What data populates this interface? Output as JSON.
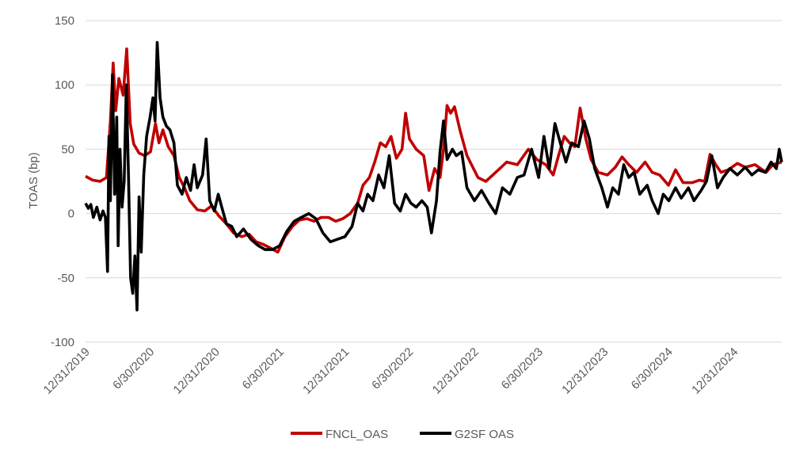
{
  "chart_data": {
    "type": "line",
    "ylabel": "TOAS (bp)",
    "ylim": [
      -100,
      150
    ],
    "yticks": [
      "150",
      "100",
      "50",
      "0",
      "-50",
      "-100"
    ],
    "xlim": [
      "2019-12-31",
      "2025-05-15"
    ],
    "xticks": [
      "12/31/2019",
      "6/30/2020",
      "12/31/2020",
      "6/30/2021",
      "12/31/2021",
      "6/30/2022",
      "12/31/2022",
      "6/30/2023",
      "12/31/2023",
      "6/30/2024",
      "12/31/2024"
    ],
    "grid": true,
    "legend_position": "bottom",
    "series": [
      {
        "name": "FNCL_OAS",
        "color": "#c00000",
        "points": [
          [
            "2019-12-31",
            29
          ],
          [
            "2020-01-20",
            26
          ],
          [
            "2020-02-10",
            25
          ],
          [
            "2020-02-28",
            28
          ],
          [
            "2020-03-10",
            72
          ],
          [
            "2020-03-18",
            117
          ],
          [
            "2020-03-25",
            80
          ],
          [
            "2020-04-03",
            105
          ],
          [
            "2020-04-15",
            92
          ],
          [
            "2020-04-25",
            128
          ],
          [
            "2020-05-05",
            70
          ],
          [
            "2020-05-15",
            54
          ],
          [
            "2020-05-30",
            47
          ],
          [
            "2020-06-15",
            45
          ],
          [
            "2020-07-01",
            48
          ],
          [
            "2020-07-15",
            70
          ],
          [
            "2020-07-25",
            55
          ],
          [
            "2020-08-05",
            65
          ],
          [
            "2020-08-20",
            52
          ],
          [
            "2020-09-05",
            45
          ],
          [
            "2020-09-20",
            28
          ],
          [
            "2020-10-05",
            20
          ],
          [
            "2020-10-20",
            10
          ],
          [
            "2020-11-10",
            3
          ],
          [
            "2020-12-01",
            2
          ],
          [
            "2020-12-20",
            6
          ],
          [
            "2021-01-10",
            -2
          ],
          [
            "2021-01-31",
            -8
          ],
          [
            "2021-02-20",
            -15
          ],
          [
            "2021-03-15",
            -18
          ],
          [
            "2021-04-05",
            -16
          ],
          [
            "2021-04-25",
            -22
          ],
          [
            "2021-05-15",
            -24
          ],
          [
            "2021-06-05",
            -27
          ],
          [
            "2021-06-25",
            -30
          ],
          [
            "2021-07-15",
            -18
          ],
          [
            "2021-08-05",
            -10
          ],
          [
            "2021-08-25",
            -5
          ],
          [
            "2021-09-15",
            -4
          ],
          [
            "2021-10-05",
            -6
          ],
          [
            "2021-10-25",
            -3
          ],
          [
            "2021-11-15",
            -3
          ],
          [
            "2021-12-05",
            -6
          ],
          [
            "2021-12-25",
            -4
          ],
          [
            "2022-01-15",
            0
          ],
          [
            "2022-02-05",
            8
          ],
          [
            "2022-02-20",
            22
          ],
          [
            "2022-03-10",
            28
          ],
          [
            "2022-03-25",
            40
          ],
          [
            "2022-04-10",
            55
          ],
          [
            "2022-04-25",
            52
          ],
          [
            "2022-05-10",
            60
          ],
          [
            "2022-05-25",
            43
          ],
          [
            "2022-06-10",
            50
          ],
          [
            "2022-06-20",
            78
          ],
          [
            "2022-07-01",
            58
          ],
          [
            "2022-07-20",
            50
          ],
          [
            "2022-08-10",
            45
          ],
          [
            "2022-08-25",
            18
          ],
          [
            "2022-09-10",
            35
          ],
          [
            "2022-09-25",
            28
          ],
          [
            "2022-10-05",
            50
          ],
          [
            "2022-10-15",
            84
          ],
          [
            "2022-10-25",
            78
          ],
          [
            "2022-11-05",
            83
          ],
          [
            "2022-11-20",
            65
          ],
          [
            "2022-12-10",
            45
          ],
          [
            "2023-01-10",
            28
          ],
          [
            "2023-02-01",
            25
          ],
          [
            "2023-03-01",
            32
          ],
          [
            "2023-04-01",
            40
          ],
          [
            "2023-05-01",
            38
          ],
          [
            "2023-06-01",
            50
          ],
          [
            "2023-06-25",
            42
          ],
          [
            "2023-07-20",
            38
          ],
          [
            "2023-08-10",
            30
          ],
          [
            "2023-08-25",
            45
          ],
          [
            "2023-09-10",
            60
          ],
          [
            "2023-09-25",
            55
          ],
          [
            "2023-10-10",
            52
          ],
          [
            "2023-10-25",
            82
          ],
          [
            "2023-11-10",
            58
          ],
          [
            "2023-11-25",
            42
          ],
          [
            "2023-12-15",
            32
          ],
          [
            "2024-01-10",
            30
          ],
          [
            "2024-02-01",
            36
          ],
          [
            "2024-02-20",
            44
          ],
          [
            "2024-03-10",
            38
          ],
          [
            "2024-04-01",
            32
          ],
          [
            "2024-04-25",
            40
          ],
          [
            "2024-05-15",
            32
          ],
          [
            "2024-06-05",
            30
          ],
          [
            "2024-06-30",
            22
          ],
          [
            "2024-07-20",
            34
          ],
          [
            "2024-08-10",
            24
          ],
          [
            "2024-09-05",
            24
          ],
          [
            "2024-09-25",
            26
          ],
          [
            "2024-10-10",
            25
          ],
          [
            "2024-10-25",
            46
          ],
          [
            "2024-11-10",
            38
          ],
          [
            "2024-11-25",
            32
          ],
          [
            "2024-12-15",
            34
          ],
          [
            "2025-01-10",
            39
          ],
          [
            "2025-02-01",
            36
          ],
          [
            "2025-03-01",
            38
          ],
          [
            "2025-04-01",
            32
          ],
          [
            "2025-04-20",
            38
          ],
          [
            "2025-05-15",
            40
          ]
        ]
      },
      {
        "name": "G2SF OAS",
        "color": "#000000",
        "points": [
          [
            "2019-12-31",
            8
          ],
          [
            "2020-01-08",
            4
          ],
          [
            "2020-01-15",
            7
          ],
          [
            "2020-01-22",
            -3
          ],
          [
            "2020-02-01",
            5
          ],
          [
            "2020-02-10",
            -5
          ],
          [
            "2020-02-18",
            2
          ],
          [
            "2020-02-25",
            -3
          ],
          [
            "2020-03-02",
            -45
          ],
          [
            "2020-03-06",
            60
          ],
          [
            "2020-03-10",
            10
          ],
          [
            "2020-03-16",
            108
          ],
          [
            "2020-03-22",
            15
          ],
          [
            "2020-03-28",
            75
          ],
          [
            "2020-04-01",
            -25
          ],
          [
            "2020-04-06",
            50
          ],
          [
            "2020-04-12",
            5
          ],
          [
            "2020-04-18",
            25
          ],
          [
            "2020-04-24",
            100
          ],
          [
            "2020-04-30",
            30
          ],
          [
            "2020-05-06",
            -50
          ],
          [
            "2020-05-12",
            -62
          ],
          [
            "2020-05-18",
            -33
          ],
          [
            "2020-05-24",
            -75
          ],
          [
            "2020-05-30",
            13
          ],
          [
            "2020-06-05",
            -30
          ],
          [
            "2020-06-12",
            30
          ],
          [
            "2020-06-20",
            60
          ],
          [
            "2020-06-30",
            75
          ],
          [
            "2020-07-08",
            90
          ],
          [
            "2020-07-14",
            72
          ],
          [
            "2020-07-20",
            133
          ],
          [
            "2020-07-28",
            90
          ],
          [
            "2020-08-05",
            75
          ],
          [
            "2020-08-15",
            68
          ],
          [
            "2020-08-25",
            65
          ],
          [
            "2020-09-05",
            55
          ],
          [
            "2020-09-15",
            22
          ],
          [
            "2020-09-28",
            15
          ],
          [
            "2020-10-10",
            28
          ],
          [
            "2020-10-22",
            18
          ],
          [
            "2020-11-01",
            38
          ],
          [
            "2020-11-10",
            20
          ],
          [
            "2020-11-25",
            30
          ],
          [
            "2020-12-05",
            58
          ],
          [
            "2020-12-15",
            10
          ],
          [
            "2020-12-28",
            2
          ],
          [
            "2021-01-08",
            15
          ],
          [
            "2021-01-18",
            5
          ],
          [
            "2021-01-31",
            -8
          ],
          [
            "2021-02-15",
            -10
          ],
          [
            "2021-03-01",
            -18
          ],
          [
            "2021-03-20",
            -12
          ],
          [
            "2021-04-10",
            -20
          ],
          [
            "2021-05-01",
            -25
          ],
          [
            "2021-05-20",
            -28
          ],
          [
            "2021-06-10",
            -28
          ],
          [
            "2021-06-30",
            -25
          ],
          [
            "2021-07-20",
            -14
          ],
          [
            "2021-08-10",
            -6
          ],
          [
            "2021-08-30",
            -3
          ],
          [
            "2021-09-20",
            0
          ],
          [
            "2021-10-10",
            -4
          ],
          [
            "2021-10-30",
            -15
          ],
          [
            "2021-11-20",
            -22
          ],
          [
            "2021-12-10",
            -20
          ],
          [
            "2021-12-31",
            -18
          ],
          [
            "2022-01-20",
            -10
          ],
          [
            "2022-02-05",
            8
          ],
          [
            "2022-02-20",
            2
          ],
          [
            "2022-03-05",
            15
          ],
          [
            "2022-03-20",
            10
          ],
          [
            "2022-04-05",
            30
          ],
          [
            "2022-04-20",
            20
          ],
          [
            "2022-05-05",
            45
          ],
          [
            "2022-05-20",
            8
          ],
          [
            "2022-06-05",
            2
          ],
          [
            "2022-06-20",
            15
          ],
          [
            "2022-07-05",
            8
          ],
          [
            "2022-07-20",
            5
          ],
          [
            "2022-08-05",
            10
          ],
          [
            "2022-08-20",
            5
          ],
          [
            "2022-09-01",
            -15
          ],
          [
            "2022-09-15",
            10
          ],
          [
            "2022-09-25",
            48
          ],
          [
            "2022-10-05",
            72
          ],
          [
            "2022-10-15",
            42
          ],
          [
            "2022-10-30",
            50
          ],
          [
            "2022-11-10",
            45
          ],
          [
            "2022-11-25",
            48
          ],
          [
            "2022-12-10",
            20
          ],
          [
            "2022-12-31",
            10
          ],
          [
            "2023-01-20",
            18
          ],
          [
            "2023-02-10",
            8
          ],
          [
            "2023-03-01",
            0
          ],
          [
            "2023-03-20",
            20
          ],
          [
            "2023-04-10",
            15
          ],
          [
            "2023-05-01",
            28
          ],
          [
            "2023-05-20",
            30
          ],
          [
            "2023-06-10",
            50
          ],
          [
            "2023-06-30",
            28
          ],
          [
            "2023-07-15",
            60
          ],
          [
            "2023-07-30",
            35
          ],
          [
            "2023-08-15",
            70
          ],
          [
            "2023-08-30",
            55
          ],
          [
            "2023-09-15",
            40
          ],
          [
            "2023-10-01",
            55
          ],
          [
            "2023-10-20",
            52
          ],
          [
            "2023-11-05",
            72
          ],
          [
            "2023-11-20",
            58
          ],
          [
            "2023-12-05",
            35
          ],
          [
            "2023-12-25",
            20
          ],
          [
            "2024-01-10",
            5
          ],
          [
            "2024-01-25",
            20
          ],
          [
            "2024-02-10",
            15
          ],
          [
            "2024-02-25",
            38
          ],
          [
            "2024-03-10",
            28
          ],
          [
            "2024-03-25",
            32
          ],
          [
            "2024-04-10",
            15
          ],
          [
            "2024-05-01",
            22
          ],
          [
            "2024-05-15",
            10
          ],
          [
            "2024-06-01",
            0
          ],
          [
            "2024-06-15",
            15
          ],
          [
            "2024-07-01",
            10
          ],
          [
            "2024-07-20",
            20
          ],
          [
            "2024-08-05",
            12
          ],
          [
            "2024-08-25",
            20
          ],
          [
            "2024-09-10",
            10
          ],
          [
            "2024-09-30",
            18
          ],
          [
            "2024-10-15",
            25
          ],
          [
            "2024-10-30",
            45
          ],
          [
            "2024-11-15",
            20
          ],
          [
            "2024-12-01",
            28
          ],
          [
            "2024-12-20",
            35
          ],
          [
            "2025-01-10",
            30
          ],
          [
            "2025-02-01",
            36
          ],
          [
            "2025-02-20",
            30
          ],
          [
            "2025-03-10",
            34
          ],
          [
            "2025-03-30",
            32
          ],
          [
            "2025-04-15",
            40
          ],
          [
            "2025-04-30",
            35
          ],
          [
            "2025-05-08",
            50
          ],
          [
            "2025-05-15",
            40
          ]
        ]
      }
    ]
  }
}
